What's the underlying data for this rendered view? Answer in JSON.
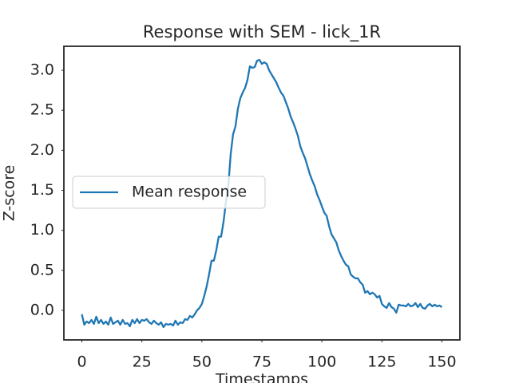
{
  "chart_data": {
    "type": "line",
    "title": "Response with SEM - lick_1R",
    "xlabel": "Timestamps",
    "ylabel": "Z-score",
    "x": [
      0,
      1,
      2,
      3,
      4,
      5,
      6,
      7,
      8,
      9,
      10,
      11,
      12,
      13,
      14,
      15,
      16,
      17,
      18,
      19,
      20,
      21,
      22,
      23,
      24,
      25,
      26,
      27,
      28,
      29,
      30,
      31,
      32,
      33,
      34,
      35,
      36,
      37,
      38,
      39,
      40,
      41,
      42,
      43,
      44,
      45,
      46,
      47,
      48,
      49,
      50,
      51,
      52,
      53,
      54,
      55,
      56,
      57,
      58,
      59,
      60,
      61,
      62,
      63,
      64,
      65,
      66,
      67,
      68,
      69,
      70,
      71,
      72,
      73,
      74,
      75,
      76,
      77,
      78,
      79,
      80,
      81,
      82,
      83,
      84,
      85,
      86,
      87,
      88,
      89,
      90,
      91,
      92,
      93,
      94,
      95,
      96,
      97,
      98,
      99,
      100,
      101,
      102,
      103,
      104,
      105,
      106,
      107,
      108,
      109,
      110,
      111,
      112,
      113,
      114,
      115,
      116,
      117,
      118,
      119,
      120,
      121,
      122,
      123,
      124,
      125,
      126,
      127,
      128,
      129,
      130,
      131,
      132,
      133,
      134,
      135,
      136,
      137,
      138,
      139,
      140,
      141,
      142,
      143,
      144,
      145,
      146,
      147,
      148,
      149,
      150
    ],
    "series": [
      {
        "name": "Mean response",
        "color": "#1f77b4",
        "values": [
          -0.05,
          -0.18,
          -0.14,
          -0.16,
          -0.12,
          -0.17,
          -0.08,
          -0.16,
          -0.12,
          -0.17,
          -0.14,
          -0.18,
          -0.09,
          -0.17,
          -0.15,
          -0.13,
          -0.18,
          -0.12,
          -0.17,
          -0.16,
          -0.2,
          -0.12,
          -0.16,
          -0.11,
          -0.16,
          -0.12,
          -0.13,
          -0.11,
          -0.15,
          -0.17,
          -0.13,
          -0.16,
          -0.18,
          -0.15,
          -0.21,
          -0.17,
          -0.18,
          -0.17,
          -0.19,
          -0.13,
          -0.18,
          -0.15,
          -0.16,
          -0.11,
          -0.12,
          -0.07,
          -0.09,
          -0.05,
          0.0,
          0.03,
          0.08,
          0.18,
          0.3,
          0.45,
          0.62,
          0.62,
          0.75,
          0.92,
          0.92,
          1.1,
          1.35,
          1.55,
          1.95,
          2.2,
          2.3,
          2.52,
          2.65,
          2.72,
          2.78,
          2.88,
          3.05,
          3.03,
          3.04,
          3.12,
          3.13,
          3.08,
          3.1,
          3.08,
          3.0,
          2.95,
          2.9,
          2.85,
          2.78,
          2.72,
          2.68,
          2.6,
          2.52,
          2.42,
          2.35,
          2.27,
          2.18,
          2.05,
          1.97,
          1.9,
          1.8,
          1.7,
          1.62,
          1.55,
          1.45,
          1.38,
          1.3,
          1.22,
          1.18,
          1.05,
          0.95,
          0.9,
          0.85,
          0.75,
          0.68,
          0.62,
          0.57,
          0.55,
          0.45,
          0.42,
          0.4,
          0.4,
          0.35,
          0.32,
          0.22,
          0.24,
          0.2,
          0.22,
          0.2,
          0.16,
          0.18,
          0.08,
          0.05,
          0.03,
          0.09,
          0.04,
          0.02,
          -0.03,
          0.07,
          0.06,
          0.06,
          0.05,
          0.08,
          0.05,
          0.06,
          0.09,
          0.04,
          0.08,
          0.03,
          0.02,
          0.06,
          0.08,
          0.05,
          0.07,
          0.05,
          0.06,
          0.04
        ]
      }
    ],
    "xlim": [
      -7.5,
      157.5
    ],
    "ylim": [
      -0.37,
      3.3
    ],
    "xticks": [
      0,
      25,
      50,
      75,
      100,
      125,
      150
    ],
    "yticks": [
      {
        "value": 0,
        "label": "0.0"
      },
      0.5,
      {
        "value": 1,
        "label": "1.0"
      },
      1.5,
      {
        "value": 2,
        "label": "2.0"
      },
      2.5,
      {
        "value": 3,
        "label": "3.0"
      }
    ],
    "legend": "center left",
    "grid": false
  }
}
